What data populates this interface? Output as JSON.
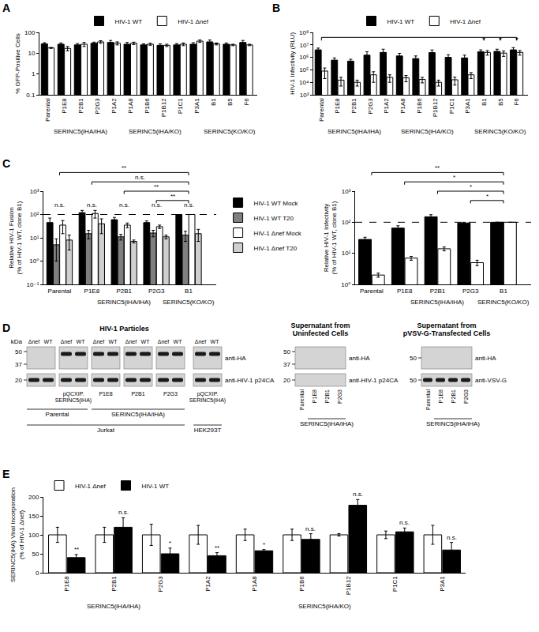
{
  "chart_data": [
    {
      "panel": "A",
      "type": "bar",
      "categories": [
        "Parental",
        "P1E8",
        "P2B1",
        "P2G3",
        "P1A2",
        "P1A8",
        "P1B6",
        "P1B12",
        "P1C1",
        "P3A1",
        "B1",
        "B5",
        "F6"
      ],
      "series": [
        {
          "name": "HIV-1 WT",
          "color": "#000000",
          "values": [
            28,
            27,
            25,
            30,
            33,
            27,
            25,
            24,
            25,
            27,
            35,
            27,
            33
          ],
          "errors": [
            4,
            4,
            4,
            4,
            8,
            6,
            3,
            4,
            4,
            5,
            8,
            4,
            8
          ]
        },
        {
          "name": "HIV-1 Δnef",
          "color": "#ffffff",
          "values": [
            18,
            17,
            27,
            35,
            30,
            30,
            27,
            24,
            27,
            38,
            28,
            25,
            25
          ],
          "errors": [
            1,
            4,
            6,
            5,
            5,
            4,
            3,
            3,
            4,
            5,
            3,
            2,
            2
          ]
        }
      ],
      "y_label": "% GFP-Positive Cells",
      "log": "y",
      "ylim": [
        0.1,
        100
      ],
      "yticks": [
        0.1,
        1,
        10,
        100
      ],
      "legend": "top",
      "category_groups": [
        {
          "label": "SERINC5(iHA/iHA)",
          "from": "P1E8",
          "to": "P2G3"
        },
        {
          "label": "SERINC5(iHA/KO)",
          "from": "P1A2",
          "to": "P3A1"
        },
        {
          "label": "SERINC5(KO/KO)",
          "from": "B1",
          "to": "F6"
        }
      ]
    },
    {
      "panel": "B",
      "type": "bar",
      "categories": [
        "Parental",
        "P1E8",
        "P2B1",
        "P2G3",
        "P1A2",
        "P1A8",
        "P1B6",
        "P1B12",
        "P1C1",
        "P3A1",
        "B1",
        "B5",
        "F6"
      ],
      "series": [
        {
          "name": "HIV-1 WT",
          "color": "#000000",
          "values": [
            4000000,
            600000,
            500000,
            1500000,
            2500000,
            1300000,
            800000,
            2400000,
            1000000,
            900000,
            2800000,
            3000000,
            4000000
          ],
          "errors": [
            1500000,
            300000,
            200000,
            1300000,
            2000000,
            800000,
            500000,
            1500000,
            600000,
            600000,
            1200000,
            1500000,
            2000000
          ]
        },
        {
          "name": "HIV-1 Δnef",
          "color": "#ffffff",
          "values": [
            80000,
            15000,
            10000,
            40000,
            25000,
            23000,
            17000,
            10000,
            16000,
            40000,
            2500000,
            2200000,
            2500000
          ],
          "errors": [
            60000,
            10000,
            5000,
            30000,
            15000,
            12000,
            8000,
            5000,
            10000,
            20000,
            1000000,
            1000000,
            1000000
          ]
        }
      ],
      "y_label": "HIV-1 Infectivity (RLU)",
      "log": "y",
      "ylim": [
        1000,
        100000000
      ],
      "yticks": [
        {
          "value": 1000,
          "label": "10³"
        },
        {
          "value": 10000,
          "label": "10⁴"
        },
        {
          "value": 100000,
          "label": "10⁵"
        },
        {
          "value": 1000000,
          "label": "10⁶"
        },
        {
          "value": 10000000,
          "label": "10⁷"
        },
        {
          "value": 100000000,
          "label": "10⁸"
        }
      ],
      "legend": "top",
      "category_groups": [
        {
          "label": "SERINC5(iHA/iHA)",
          "from": "P1E8",
          "to": "P2G3"
        },
        {
          "label": "SERINC5(iHA/KO)",
          "from": "P1A2",
          "to": "P3A1"
        },
        {
          "label": "SERINC5(KO/KO)",
          "from": "B1",
          "to": "F6"
        }
      ],
      "significance": {
        "from": "Parental",
        "targets": [
          "B1",
          "B5",
          "F6"
        ],
        "text": "*"
      }
    },
    {
      "panel": "C",
      "type": "bar",
      "categories": [
        "Parental",
        "P1E8",
        "P2B1",
        "P2G3",
        "B1"
      ],
      "series": [
        {
          "name": "HIV-1 WT Mock",
          "color": "#000000",
          "values": [
            45,
            120,
            60,
            45,
            100
          ],
          "errors": [
            25,
            30,
            15,
            8,
            0
          ]
        },
        {
          "name": "HIV-1 WT T20",
          "color": "#7f7f7f",
          "values": [
            5,
            15,
            11,
            16,
            13
          ],
          "errors": [
            4,
            6,
            3,
            5,
            6
          ]
        },
        {
          "name": "HIV-1 Δnef Mock",
          "color": "#ffffff",
          "values": [
            35,
            110,
            35,
            30,
            100
          ],
          "errors": [
            20,
            40,
            8,
            5,
            0
          ]
        },
        {
          "name": "HIV-1 Δnef T20",
          "color": "#cfcfcf",
          "values": [
            8,
            40,
            7,
            11,
            15
          ],
          "errors": [
            5,
            25,
            1,
            2,
            8
          ]
        }
      ],
      "y_label": "Relative HIV-1 Fusion\n(% of HIV-1 WT, clone B1)",
      "log": "y",
      "ylim": [
        0.1,
        1000
      ],
      "yticks": [
        {
          "value": 0.1,
          "label": "10⁻¹"
        },
        {
          "value": 1,
          "label": "10⁰"
        },
        {
          "value": 10,
          "label": "10¹"
        },
        {
          "value": 100,
          "label": "10²"
        },
        {
          "value": 1000,
          "label": "10³"
        }
      ],
      "legend": "right",
      "reference_line": 100,
      "category_groups": [
        {
          "label": "SERINC5(iHA/iHA)",
          "from": "P1E8",
          "to": "P2G3"
        },
        {
          "label": "SERINC5(KO/KO)",
          "from": "B1",
          "to": "B1"
        }
      ],
      "group_significance": [
        {
          "category": "Parental",
          "text": "n.s."
        },
        {
          "category": "P1E8",
          "text": "n.s."
        },
        {
          "category": "P2B1",
          "text": "n.s."
        },
        {
          "category": "P2G3",
          "text": "n.s."
        },
        {
          "category": "B1",
          "text": "n.s."
        }
      ],
      "significance": [
        {
          "from": "Parental",
          "to": "B1",
          "text": "**"
        },
        {
          "from": "P1E8",
          "to": "B1",
          "text": "n.s."
        },
        {
          "from": "P2B1",
          "to": "B1",
          "text": "**"
        },
        {
          "from": "P2G3",
          "to": "B1",
          "text": "**"
        }
      ]
    },
    {
      "panel": "C",
      "type": "bar",
      "categories": [
        "Parental",
        "P1E8",
        "P2B1",
        "P2G3",
        "B1"
      ],
      "series": [
        {
          "name": "HIV-1 WT",
          "color": "#000000",
          "values": [
            28,
            65,
            150,
            95,
            100
          ],
          "errors": [
            5,
            12,
            25,
            5,
            0
          ]
        },
        {
          "name": "HIV-1 Δnef",
          "color": "#ffffff",
          "values": [
            2,
            7,
            14,
            5,
            100
          ],
          "errors": [
            0.3,
            1,
            2,
            1,
            0
          ]
        }
      ],
      "y_label": "Relative HIV-1 Infectivity\n(% of HIV-1 WT, clone B1)",
      "log": "y",
      "ylim": [
        1,
        1000
      ],
      "yticks": [
        {
          "value": 1,
          "label": "10⁰"
        },
        {
          "value": 10,
          "label": "10¹"
        },
        {
          "value": 100,
          "label": "10²"
        },
        {
          "value": 1000,
          "label": "10³"
        }
      ],
      "reference_line": 100,
      "category_groups": [
        {
          "label": "SERINC5(iHA/iHA)",
          "from": "P1E8",
          "to": "P2G3"
        },
        {
          "label": "SERINC5(KO/KO)",
          "from": "B1",
          "to": "B1"
        }
      ],
      "significance": [
        {
          "from": "Parental",
          "to": "B1",
          "text": "**"
        },
        {
          "from": "P1E8",
          "to": "B1",
          "text": "*"
        },
        {
          "from": "P2B1",
          "to": "B1",
          "text": "*"
        },
        {
          "from": "P2G3",
          "to": "B1",
          "text": "*"
        }
      ]
    },
    {
      "panel": "E",
      "type": "bar",
      "categories": [
        "P1E8",
        "P2B1",
        "P2G3",
        "P1A2",
        "P1A8",
        "P1B6",
        "P1B12",
        "P1C1",
        "P3A1"
      ],
      "series": [
        {
          "name": "HIV-1 Δnef",
          "color": "#ffffff",
          "values": [
            100,
            100,
            100,
            100,
            100,
            100,
            100,
            100,
            100
          ],
          "errors": [
            20,
            20,
            28,
            25,
            15,
            15,
            3,
            10,
            25
          ]
        },
        {
          "name": "HIV-1 WT",
          "color": "#000000",
          "values": [
            40,
            120,
            50,
            45,
            58,
            88,
            178,
            108,
            60
          ],
          "errors": [
            8,
            25,
            15,
            8,
            3,
            15,
            15,
            10,
            20
          ],
          "significance": [
            "**",
            "n.s.",
            "*",
            "**",
            "*",
            "n.s.",
            "n.s.",
            "n.s.",
            "n.s."
          ]
        }
      ],
      "y_label": "SERINC5(iHA) Viral Incorporation\n(% of HIV-1 Δnef)",
      "ylim": [
        0,
        200
      ],
      "yticks": [
        0,
        50,
        100,
        150,
        200
      ],
      "legend": "top left",
      "category_groups": [
        {
          "label": "SERINC5(iHA/iHA)",
          "from": "P1E8",
          "to": "P2G3"
        },
        {
          "label": "SERINC5(iHA/KO)",
          "from": "P1A2",
          "to": "P3A1"
        }
      ]
    }
  ],
  "blot_panel": {
    "panel": "D",
    "blots": [
      {
        "title": "HIV-1 Particles",
        "kda_label": "kDa",
        "groups": [
          {
            "label": null,
            "lanes": [
              "Δnef",
              "WT"
            ]
          },
          {
            "label": "pQCXIP.\nSERINC5(iHA)",
            "lanes": [
              "Δnef",
              "WT"
            ]
          },
          {
            "label": "P1E8",
            "lanes": [
              "Δnef",
              "WT"
            ]
          },
          {
            "label": "P2B1",
            "lanes": [
              "Δnef",
              "WT"
            ]
          },
          {
            "label": "P2G3",
            "lanes": [
              "Δnef",
              "WT"
            ]
          },
          {
            "label": "pQCXIP.\nSERINC5(iHA)",
            "lanes": [
              "Δnef",
              "WT"
            ]
          }
        ],
        "spans": [
          [
            {
              "text": "Parental",
              "from": 0,
              "to": 1
            },
            {
              "text": "SERINC5(iHA/iHA)",
              "from": 2,
              "to": 4
            }
          ],
          [
            {
              "text": "Jurkat",
              "from": 0,
              "to": 4
            },
            {
              "text": "HEK293T",
              "from": 5,
              "to": 5
            }
          ]
        ],
        "rows": [
          {
            "antibody": "anti-HA",
            "markers": [
              50,
              37
            ],
            "bands": [
              false,
              false,
              true,
              true,
              true,
              true,
              true,
              true,
              true,
              true,
              true,
              true
            ]
          },
          {
            "antibody": "anti-HIV-1 p24CA",
            "markers": [
              20
            ],
            "bands": [
              true,
              true,
              true,
              true,
              true,
              true,
              true,
              true,
              true,
              true,
              true,
              true
            ]
          }
        ]
      },
      {
        "title": "Supernatant from\nUninfected Cells",
        "lanes": [
          "Parental",
          "P1E8",
          "P2B1",
          "P2G3"
        ],
        "spans": [
          [
            {
              "text": "SERINC5(iHA/iHA)",
              "from": 1,
              "to": 3
            }
          ]
        ],
        "rows": [
          {
            "antibody": "anti-HA",
            "markers": [
              50,
              37
            ],
            "bands": [
              false,
              false,
              false,
              false
            ]
          },
          {
            "antibody": "anti-HIV-1 p24CA",
            "markers": [
              20
            ],
            "bands": [
              false,
              false,
              false,
              false
            ]
          }
        ]
      },
      {
        "title": "Supernatant from\npVSV-G-Transfected Cells",
        "lanes": [
          "Parental",
          "P1E8",
          "P2B1",
          "P2G3"
        ],
        "spans": [
          [
            {
              "text": "SERINC5(iHA/iHA)",
              "from": 1,
              "to": 3
            }
          ]
        ],
        "rows": [
          {
            "antibody": "anti-HA",
            "markers": [
              50
            ],
            "bands": [
              false,
              false,
              false,
              false
            ]
          },
          {
            "antibody": "anti-VSV-G",
            "markers": [
              50
            ],
            "bands": [
              true,
              true,
              true,
              true
            ]
          }
        ]
      }
    ]
  }
}
